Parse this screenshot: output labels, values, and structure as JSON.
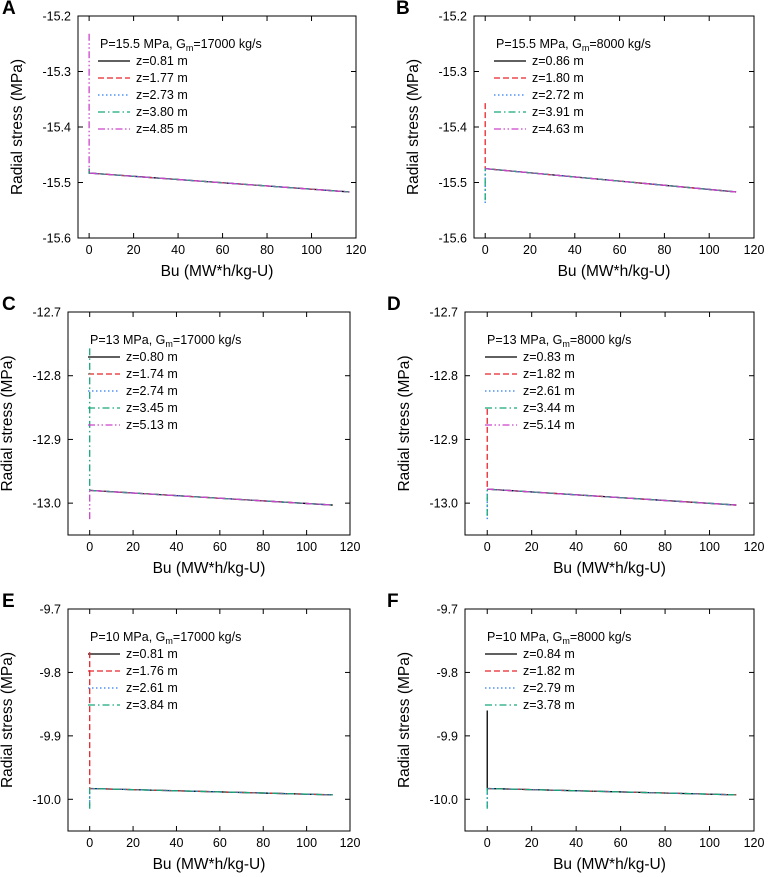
{
  "chart_data": [
    {
      "type": "line",
      "panel_label": "A",
      "legend_title": {
        "prefix": "P=15.5 MPa, G",
        "sub": "m",
        "suffix": "=17000 kg/s"
      },
      "xlabel": "Bu (MW*h/kg-U)",
      "ylabel": "Radial stress (MPa)",
      "xlim": [
        -5,
        120
      ],
      "ylim": [
        -15.6,
        -15.2
      ],
      "xticks": [
        0,
        20,
        40,
        60,
        80,
        100,
        120
      ],
      "xtick_labels": [
        "0",
        "20",
        "40",
        "60",
        "80",
        "100",
        "120"
      ],
      "yticks": [
        -15.6,
        -15.5,
        -15.4,
        -15.3,
        -15.2
      ],
      "ytick_labels": [
        "-15.6",
        "-15.5",
        "-15.4",
        "-15.3",
        "-15.2"
      ],
      "series": [
        {
          "name": "z=0.81 m",
          "color": "#000000",
          "dash": "solid",
          "x": [
            0,
            0,
            117
          ],
          "y": [
            -15.475,
            -15.483,
            -15.517
          ]
        },
        {
          "name": "z=1.77 m",
          "color": "#e8252b",
          "dash": "dash",
          "x": [
            0,
            0,
            117
          ],
          "y": [
            -15.475,
            -15.483,
            -15.517
          ]
        },
        {
          "name": "z=2.73 m",
          "color": "#2f7ef2",
          "dash": "dot",
          "x": [
            0,
            0,
            117
          ],
          "y": [
            -15.475,
            -15.483,
            -15.517
          ]
        },
        {
          "name": "z=3.80 m",
          "color": "#16a77a",
          "dash": "dashdot",
          "x": [
            0,
            0,
            117
          ],
          "y": [
            -15.475,
            -15.483,
            -15.517
          ]
        },
        {
          "name": "z=4.85 m",
          "color": "#cc44cc",
          "dash": "dashdotdot",
          "x": [
            0,
            0,
            117
          ],
          "y": [
            -15.232,
            -15.483,
            -15.517
          ]
        }
      ]
    },
    {
      "type": "line",
      "panel_label": "B",
      "legend_title": {
        "prefix": "P=15.5 MPa, G",
        "sub": "m",
        "suffix": "=8000 kg/s"
      },
      "xlabel": "Bu (MW*h/kg-U)",
      "ylabel": "Radial stress (MPa)",
      "xlim": [
        -5,
        120
      ],
      "ylim": [
        -15.6,
        -15.2
      ],
      "xticks": [
        0,
        20,
        40,
        60,
        80,
        100,
        120
      ],
      "xtick_labels": [
        "0",
        "20",
        "40",
        "60",
        "80",
        "100",
        "120"
      ],
      "yticks": [
        -15.6,
        -15.5,
        -15.4,
        -15.3,
        -15.2
      ],
      "ytick_labels": [
        "-15.6",
        "-15.5",
        "-15.4",
        "-15.3",
        "-15.2"
      ],
      "series": [
        {
          "name": "z=0.86 m",
          "color": "#000000",
          "dash": "solid",
          "x": [
            0,
            0,
            112
          ],
          "y": [
            -15.475,
            -15.475,
            -15.517
          ]
        },
        {
          "name": "z=1.80 m",
          "color": "#e8252b",
          "dash": "dash",
          "x": [
            0,
            0,
            112
          ],
          "y": [
            -15.357,
            -15.475,
            -15.517
          ]
        },
        {
          "name": "z=2.72 m",
          "color": "#2f7ef2",
          "dash": "dot",
          "x": [
            0,
            0,
            112
          ],
          "y": [
            -15.537,
            -15.475,
            -15.517
          ]
        },
        {
          "name": "z=3.91 m",
          "color": "#16a77a",
          "dash": "dashdot",
          "x": [
            0,
            0,
            112
          ],
          "y": [
            -15.532,
            -15.475,
            -15.517
          ]
        },
        {
          "name": "z=4.63 m",
          "color": "#cc44cc",
          "dash": "dashdotdot",
          "x": [
            0,
            0,
            112
          ],
          "y": [
            -15.475,
            -15.475,
            -15.517
          ]
        }
      ]
    },
    {
      "type": "line",
      "panel_label": "C",
      "legend_title": {
        "prefix": "P=13 MPa, G",
        "sub": "m",
        "suffix": "=17000 kg/s"
      },
      "xlabel": "Bu (MW*h/kg-U)",
      "ylabel": "Radial stress (MPa)",
      "xlim": [
        -10,
        120
      ],
      "ylim": [
        -13.05,
        -12.7
      ],
      "xticks": [
        0,
        20,
        40,
        60,
        80,
        100,
        120
      ],
      "xtick_labels": [
        "0",
        "20",
        "40",
        "60",
        "80",
        "100",
        "120"
      ],
      "yticks": [
        -13.0,
        -12.9,
        -12.8,
        -12.7
      ],
      "ytick_labels": [
        "-13.0",
        "-12.9",
        "-12.8",
        "-12.7"
      ],
      "series": [
        {
          "name": "z=0.80 m",
          "color": "#000000",
          "dash": "solid",
          "x": [
            0,
            0,
            112
          ],
          "y": [
            -12.98,
            -12.98,
            -13.003
          ]
        },
        {
          "name": "z=1.74 m",
          "color": "#e8252b",
          "dash": "dash",
          "x": [
            0,
            0,
            112
          ],
          "y": [
            -12.98,
            -12.98,
            -13.003
          ]
        },
        {
          "name": "z=2.74 m",
          "color": "#2f7ef2",
          "dash": "dot",
          "x": [
            0,
            0,
            112
          ],
          "y": [
            -12.98,
            -12.98,
            -13.003
          ]
        },
        {
          "name": "z=3.45 m",
          "color": "#16a77a",
          "dash": "dashdot",
          "x": [
            0,
            0,
            112
          ],
          "y": [
            -12.757,
            -12.98,
            -13.003
          ]
        },
        {
          "name": "z=5.13 m",
          "color": "#cc44cc",
          "dash": "dashdotdot",
          "x": [
            0,
            0,
            112
          ],
          "y": [
            -13.025,
            -12.98,
            -13.003
          ]
        }
      ]
    },
    {
      "type": "line",
      "panel_label": "D",
      "legend_title": {
        "prefix": "P=13 MPa, G",
        "sub": "m",
        "suffix": "=8000 kg/s"
      },
      "xlabel": "Bu (MW*h/kg-U)",
      "ylabel": "Radial stress (MPa)",
      "xlim": [
        -10,
        120
      ],
      "ylim": [
        -13.05,
        -12.7
      ],
      "xticks": [
        0,
        20,
        40,
        60,
        80,
        100,
        120
      ],
      "xtick_labels": [
        "0",
        "20",
        "40",
        "60",
        "80",
        "100",
        "120"
      ],
      "yticks": [
        -13.0,
        -12.9,
        -12.8,
        -12.7
      ],
      "ytick_labels": [
        "-13.0",
        "-12.9",
        "-12.8",
        "-12.7"
      ],
      "series": [
        {
          "name": "z=0.83 m",
          "color": "#000000",
          "dash": "solid",
          "x": [
            0,
            0,
            112
          ],
          "y": [
            -12.978,
            -12.978,
            -13.003
          ]
        },
        {
          "name": "z=1.82 m",
          "color": "#e8252b",
          "dash": "dash",
          "x": [
            0,
            0,
            112
          ],
          "y": [
            -12.852,
            -12.978,
            -13.003
          ]
        },
        {
          "name": "z=2.61 m",
          "color": "#2f7ef2",
          "dash": "dot",
          "x": [
            0,
            0,
            112
          ],
          "y": [
            -13.025,
            -12.978,
            -13.003
          ]
        },
        {
          "name": "z=3.44 m",
          "color": "#16a77a",
          "dash": "dashdot",
          "x": [
            0,
            0,
            112
          ],
          "y": [
            -13.02,
            -12.978,
            -13.003
          ]
        },
        {
          "name": "z=5.14 m",
          "color": "#cc44cc",
          "dash": "dashdotdot",
          "x": [
            0,
            0,
            112
          ],
          "y": [
            -12.978,
            -12.978,
            -13.003
          ]
        }
      ]
    },
    {
      "type": "line",
      "panel_label": "E",
      "legend_title": {
        "prefix": "P=10 MPa, G",
        "sub": "m",
        "suffix": "=17000 kg/s"
      },
      "xlabel": "Bu (MW*h/kg-U)",
      "ylabel": "Radial stress (MPa)",
      "xlim": [
        -10,
        120
      ],
      "ylim": [
        -10.05,
        -9.7
      ],
      "xticks": [
        0,
        20,
        40,
        60,
        80,
        100,
        120
      ],
      "xtick_labels": [
        "0",
        "20",
        "40",
        "60",
        "80",
        "100",
        "120"
      ],
      "yticks": [
        -10.0,
        -9.9,
        -9.8,
        -9.7
      ],
      "ytick_labels": [
        "-10.0",
        "-9.9",
        "-9.8",
        "-9.7"
      ],
      "series": [
        {
          "name": "z=0.81 m",
          "color": "#000000",
          "dash": "solid",
          "x": [
            0,
            0,
            112
          ],
          "y": [
            -9.983,
            -9.983,
            -9.993
          ]
        },
        {
          "name": "z=1.76 m",
          "color": "#e8252b",
          "dash": "dash",
          "x": [
            0,
            0,
            112
          ],
          "y": [
            -9.768,
            -9.983,
            -9.993
          ]
        },
        {
          "name": "z=2.61 m",
          "color": "#2f7ef2",
          "dash": "dot",
          "x": [
            0,
            0,
            112
          ],
          "y": [
            -10.01,
            -9.983,
            -9.993
          ]
        },
        {
          "name": "z=3.84 m",
          "color": "#16a77a",
          "dash": "dashdot",
          "x": [
            0,
            0,
            112
          ],
          "y": [
            -10.015,
            -9.983,
            -9.993
          ]
        }
      ]
    },
    {
      "type": "line",
      "panel_label": "F",
      "legend_title": {
        "prefix": "P=10 MPa, G",
        "sub": "m",
        "suffix": "=8000 kg/s"
      },
      "xlabel": "Bu (MW*h/kg-U)",
      "ylabel": "Radial stress (MPa)",
      "xlim": [
        -10,
        120
      ],
      "ylim": [
        -10.05,
        -9.7
      ],
      "xticks": [
        0,
        20,
        40,
        60,
        80,
        100,
        120
      ],
      "xtick_labels": [
        "0",
        "20",
        "40",
        "60",
        "80",
        "100",
        "120"
      ],
      "yticks": [
        -10.0,
        -9.9,
        -9.8,
        -9.7
      ],
      "ytick_labels": [
        "-10.0",
        "-9.9",
        "-9.8",
        "-9.7"
      ],
      "series": [
        {
          "name": "z=0.84 m",
          "color": "#000000",
          "dash": "solid",
          "x": [
            0,
            0,
            112
          ],
          "y": [
            -9.86,
            -9.983,
            -9.993
          ]
        },
        {
          "name": "z=1.82 m",
          "color": "#e8252b",
          "dash": "dash",
          "x": [
            0,
            0,
            112
          ],
          "y": [
            -9.983,
            -9.983,
            -9.993
          ]
        },
        {
          "name": "z=2.79 m",
          "color": "#2f7ef2",
          "dash": "dot",
          "x": [
            0,
            0,
            112
          ],
          "y": [
            -10.012,
            -9.983,
            -9.993
          ]
        },
        {
          "name": "z=3.78 m",
          "color": "#16a77a",
          "dash": "dashdot",
          "x": [
            0,
            0,
            112
          ],
          "y": [
            -10.015,
            -9.983,
            -9.993
          ]
        }
      ]
    }
  ]
}
